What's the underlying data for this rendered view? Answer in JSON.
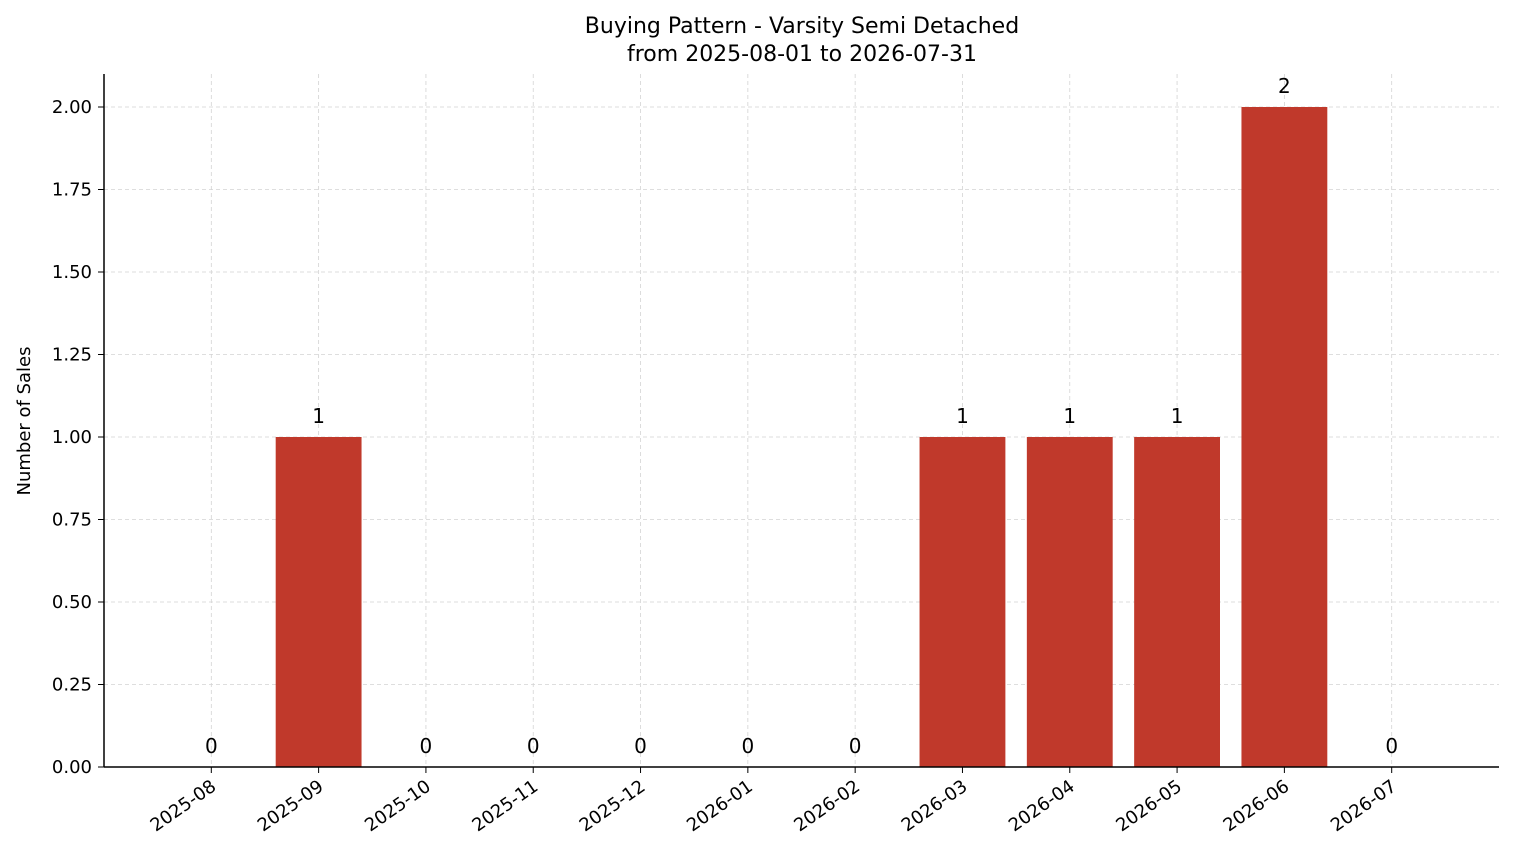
{
  "chart_data": {
    "type": "bar",
    "title": "Buying Pattern - Varsity Semi Detached",
    "subtitle": "from 2025-08-01 to 2026-07-31",
    "y_label": "Number of Sales",
    "categories": [
      "2025-08",
      "2025-09",
      "2025-10",
      "2025-11",
      "2025-12",
      "2026-01",
      "2026-02",
      "2026-03",
      "2026-04",
      "2026-05",
      "2026-06",
      "2026-07"
    ],
    "values": [
      0,
      1,
      0,
      0,
      0,
      0,
      0,
      1,
      1,
      1,
      2,
      0
    ],
    "color": "#c0392b",
    "ylim": [
      0,
      2.1
    ],
    "yticks": [
      {
        "value": 0,
        "label": "0.00"
      },
      {
        "value": 0.25,
        "label": "0.25"
      },
      {
        "value": 0.5,
        "label": "0.50"
      },
      {
        "value": 0.75,
        "label": "0.75"
      },
      {
        "value": 1,
        "label": "1.00"
      },
      {
        "value": 1.25,
        "label": "1.25"
      },
      {
        "value": 1.5,
        "label": "1.50"
      },
      {
        "value": 1.75,
        "label": "1.75"
      },
      {
        "value": 2,
        "label": "2.00"
      }
    ],
    "grid": true
  }
}
